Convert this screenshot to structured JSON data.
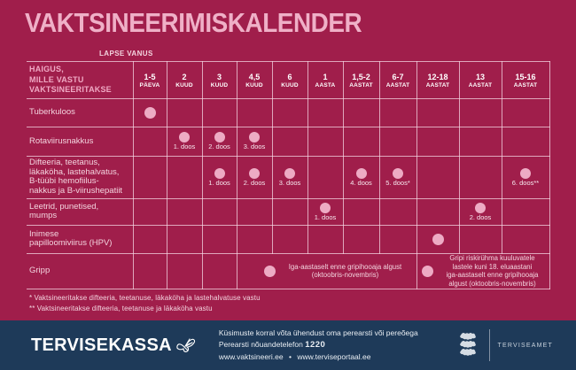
{
  "page": {
    "title": "VAKTSINEERIMISKALENDER",
    "age_axis_caption": "LAPSE VANUS"
  },
  "table": {
    "corner_header": "HAIGUS,\nMILLE VASTU\nVAKTSINEERITAKSE",
    "age_columns": [
      {
        "num": "1-5",
        "unit": "PÄEVA"
      },
      {
        "num": "2",
        "unit": "KUUD"
      },
      {
        "num": "3",
        "unit": "KUUD"
      },
      {
        "num": "4,5",
        "unit": "KUUD"
      },
      {
        "num": "6",
        "unit": "KUUD"
      },
      {
        "num": "1",
        "unit": "AASTA"
      },
      {
        "num": "1,5-2",
        "unit": "AASTAT"
      },
      {
        "num": "6-7",
        "unit": "AASTAT"
      },
      {
        "num": "12-18",
        "unit": "AASTAT"
      },
      {
        "num": "13",
        "unit": "AASTAT"
      },
      {
        "num": "15-16",
        "unit": "AASTAT"
      }
    ],
    "rows": [
      {
        "disease": "Tuberkuloos",
        "cells": [
          {
            "dot": true
          },
          null,
          null,
          null,
          null,
          null,
          null,
          null,
          null,
          null,
          null
        ]
      },
      {
        "disease": "Rotaviirusnakkus",
        "cells": [
          null,
          {
            "dot": true,
            "label": "1. doos"
          },
          {
            "dot": true,
            "label": "2. doos"
          },
          {
            "dot": true,
            "label": "3. doos"
          },
          null,
          null,
          null,
          null,
          null,
          null,
          null
        ]
      },
      {
        "disease": "Difteeria, teetanus,\nläkaköha, lastehalvatus,\nB-tüübi hemofiilus-\nnakkus ja B-viirushepatiit",
        "cells": [
          null,
          null,
          {
            "dot": true,
            "label": "1. doos"
          },
          {
            "dot": true,
            "label": "2. doos"
          },
          {
            "dot": true,
            "label": "3. doos"
          },
          null,
          {
            "dot": true,
            "label": "4. doos"
          },
          {
            "dot": true,
            "label": "5. doos*"
          },
          null,
          null,
          {
            "dot": true,
            "label": "6. doos**"
          }
        ]
      },
      {
        "disease": "Leetrid, punetised,\nmumps",
        "cells": [
          null,
          null,
          null,
          null,
          null,
          {
            "dot": true,
            "label": "1. doos"
          },
          null,
          null,
          null,
          {
            "dot": true,
            "label": "2. doos"
          },
          null
        ]
      },
      {
        "disease": "Inimese\npapilloomiviirus (HPV)",
        "cells": [
          null,
          null,
          null,
          null,
          null,
          null,
          null,
          null,
          {
            "dot": true
          },
          null,
          null
        ]
      },
      {
        "disease": "Gripp",
        "cells": [
          null,
          null,
          null,
          {
            "dot": true,
            "span": 5,
            "text": "Iga-aastaselt enne gripihooaja algust\n(oktoobris-novembris)"
          },
          {
            "dot": true,
            "span": 3,
            "text": "Gripi riskirühma kuuluvatele\nlastele kuni 18. eluaastani\niga-aastaselt enne gripihooaja\nalgust (oktoobris-novembris)"
          }
        ]
      }
    ]
  },
  "footnotes": [
    "* Vaktsineeritakse difteeria, teetanuse, läkaköha ja lastehalvatuse vastu",
    "** Vaktsineeritakse difteeria, teetanuse ja läkaköha vastu"
  ],
  "footer": {
    "brand": "TERVISEKASSA",
    "contact_line": "Küsimuste korral võta ühendust oma perearsti või pereõega",
    "phone_label": "Perearsti nõuandetelefon",
    "phone_number": "1220",
    "website1": "www.vaktsineeri.ee",
    "separator": "•",
    "website2": "www.terviseportaal.ee",
    "agency": "TERVISEAMET"
  },
  "colors": {
    "background": "#A01E4B",
    "accent_pink": "#EFB0C7",
    "dot_pink": "#EDABC4",
    "grid_line": "#F4D6E2",
    "header_text": "#FFFFFF",
    "footer_background": "#1E3A59"
  }
}
